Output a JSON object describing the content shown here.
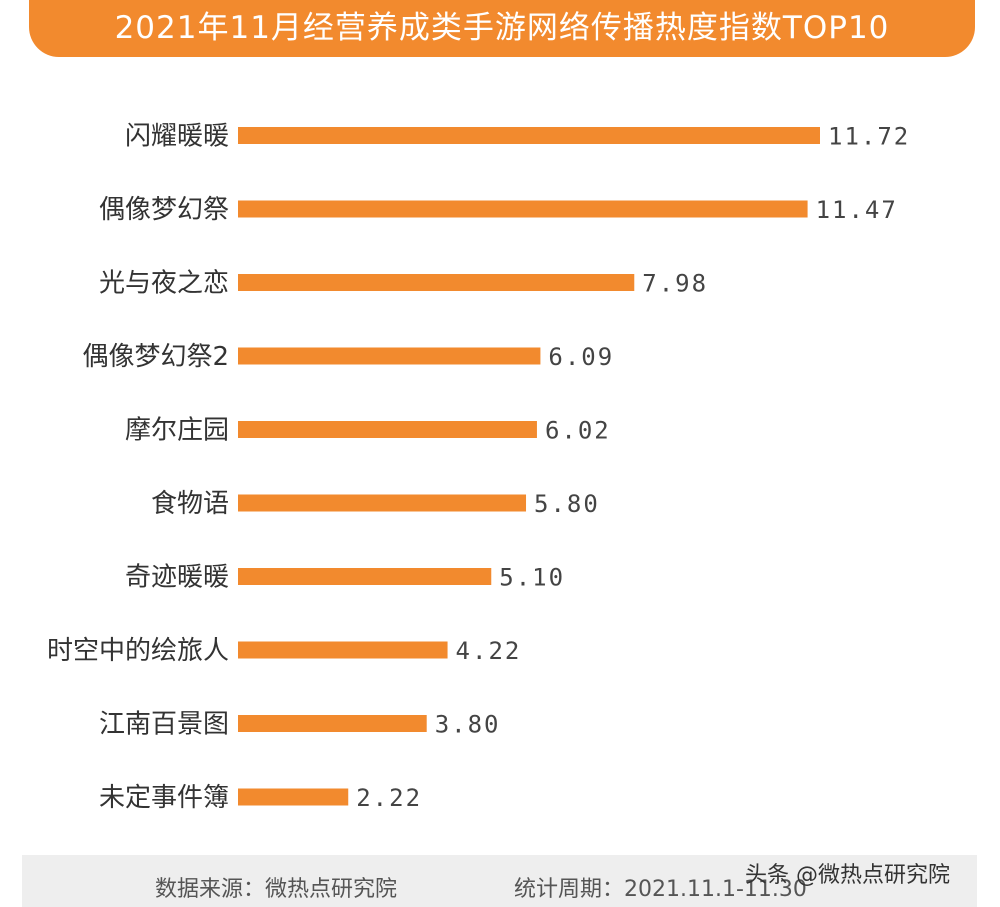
{
  "header": {
    "title": "2021年11月经营养成类手游网络传播热度指数TOP10"
  },
  "chart_data": {
    "type": "bar",
    "orientation": "horizontal",
    "title": "2021年11月经营养成类手游网络传播热度指数TOP10",
    "categories": [
      "闪耀暖暖",
      "偶像梦幻祭",
      "光与夜之恋",
      "偶像梦幻祭2",
      "摩尔庄园",
      "食物语",
      "奇迹暖暖",
      "时空中的绘旅人",
      "江南百景图",
      "未定事件簿"
    ],
    "values": [
      11.72,
      11.47,
      7.98,
      6.09,
      6.02,
      5.8,
      5.1,
      4.22,
      3.8,
      2.22
    ],
    "value_labels": [
      "11.72",
      "11.47",
      "7.98",
      "6.09",
      "6.02",
      "5.80",
      "5.10",
      "4.22",
      "3.80",
      "2.22"
    ],
    "bar_color": "#f28a2e",
    "xlim": [
      0,
      11.72
    ],
    "grid": false,
    "legend": "none"
  },
  "footer": {
    "source": "数据来源：微热点研究院",
    "period": "统计周期：2021.11.1-11.30"
  },
  "watermark": "头条 @微热点研究院",
  "colors": {
    "accent": "#f28a2e",
    "footer_bg": "#eeeeee",
    "text": "#333333"
  }
}
